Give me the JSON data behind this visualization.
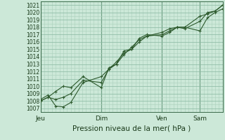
{
  "xlabel": "Pression niveau de la mer( hPa )",
  "bg_color": "#cce8d8",
  "grid_color_minor": "#aad0bc",
  "grid_color_major": "#88b8a0",
  "line_color": "#2d5a2d",
  "ylim": [
    1006.5,
    1021.5
  ],
  "xlim": [
    0,
    120
  ],
  "yticks": [
    1007,
    1008,
    1009,
    1010,
    1011,
    1012,
    1013,
    1014,
    1015,
    1016,
    1017,
    1018,
    1019,
    1020,
    1021
  ],
  "day_labels": [
    "Jeu",
    "Dim",
    "Ven",
    "Sam"
  ],
  "day_positions": [
    0,
    40,
    80,
    105
  ],
  "total_steps": 120,
  "line1_x": [
    0,
    5,
    10,
    15,
    20,
    28,
    40,
    45,
    50,
    55,
    60,
    65,
    70,
    80,
    85,
    90,
    95,
    105,
    110,
    115,
    120
  ],
  "line1_y": [
    1008.2,
    1008.8,
    1007.3,
    1007.2,
    1007.8,
    1010.5,
    1011.3,
    1012.3,
    1013.0,
    1014.3,
    1015.3,
    1016.3,
    1016.8,
    1017.3,
    1017.8,
    1018.0,
    1018.0,
    1017.5,
    1019.3,
    1020.0,
    1020.5
  ],
  "line2_x": [
    0,
    5,
    10,
    15,
    20,
    28,
    40,
    45,
    50,
    55,
    60,
    65,
    70,
    80,
    85,
    90,
    95,
    105,
    110,
    115,
    120
  ],
  "line2_y": [
    1008.0,
    1008.5,
    1009.3,
    1010.0,
    1009.8,
    1011.3,
    1009.8,
    1012.5,
    1013.0,
    1014.8,
    1015.0,
    1016.5,
    1017.0,
    1016.8,
    1017.3,
    1018.0,
    1018.0,
    1019.5,
    1019.8,
    1020.2,
    1021.0
  ],
  "line3_x": [
    0,
    5,
    10,
    15,
    20,
    28,
    40,
    45,
    50,
    55,
    60,
    65,
    70,
    80,
    85,
    90,
    95,
    105,
    110,
    115,
    120
  ],
  "line3_y": [
    1008.0,
    1008.5,
    1008.2,
    1008.5,
    1009.0,
    1010.8,
    1010.5,
    1012.3,
    1013.3,
    1014.5,
    1015.0,
    1016.0,
    1016.8,
    1017.0,
    1017.5,
    1018.0,
    1017.8,
    1018.8,
    1020.0,
    1020.2,
    1021.0
  ],
  "marker_style": "+",
  "linewidth": 0.8,
  "markersize": 3.0,
  "ylabel_fontsize": 5.5,
  "xlabel_fontsize": 7.5,
  "xtick_fontsize": 6.5
}
